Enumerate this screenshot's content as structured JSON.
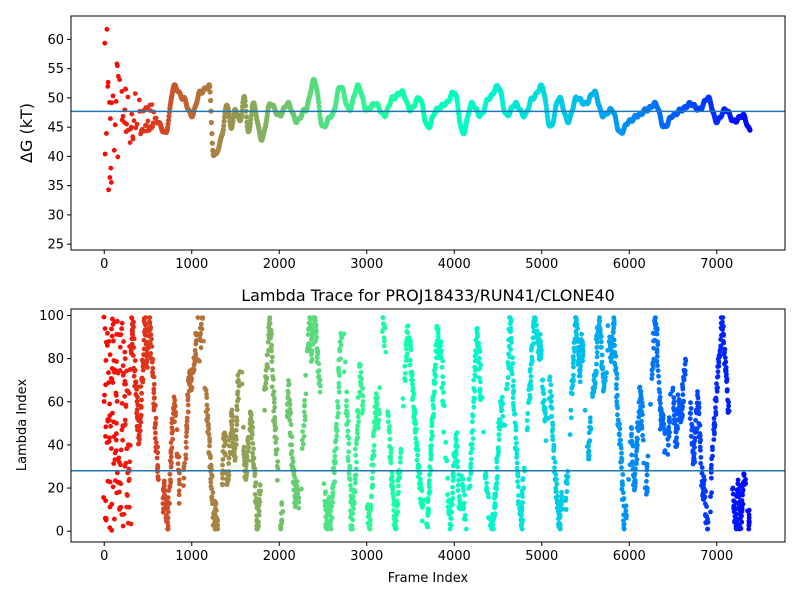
{
  "chart_data": [
    {
      "type": "scatter",
      "title": "",
      "xlabel": "",
      "ylabel": "ΔG (kT)",
      "xlim": [
        -380,
        7780
      ],
      "ylim": [
        24,
        64
      ],
      "xticks": [
        0,
        1000,
        2000,
        3000,
        4000,
        5000,
        6000,
        7000
      ],
      "xtick_labels": [
        "0",
        "1000",
        "2000",
        "3000",
        "4000",
        "5000",
        "6000",
        "7000"
      ],
      "yticks": [
        25,
        30,
        35,
        40,
        45,
        50,
        55,
        60
      ],
      "ytick_labels": [
        "25",
        "30",
        "35",
        "40",
        "45",
        "50",
        "55",
        "60"
      ],
      "grid": false,
      "colormap": "rainbow (reversed with frame index: red at 0, violet at end)",
      "hline": {
        "y": 47.7,
        "color": "#1f77b4"
      },
      "trace_keypoints": {
        "x": [
          600,
          700,
          800,
          900,
          1000,
          1100,
          1200,
          1250,
          1300,
          1350,
          1400,
          1450,
          1500,
          1550,
          1600,
          1650,
          1700,
          1800,
          1900,
          2000,
          2100,
          2200,
          2300,
          2400,
          2500,
          2600,
          2700,
          2800,
          2900,
          3000,
          3100,
          3200,
          3300,
          3400,
          3500,
          3600,
          3700,
          3800,
          3900,
          4000,
          4100,
          4200,
          4300,
          4400,
          4500,
          4600,
          4700,
          4800,
          4900,
          5000,
          5100,
          5200,
          5300,
          5400,
          5500,
          5600,
          5700,
          5800,
          5900,
          6000,
          6100,
          6200,
          6300,
          6400,
          6500,
          6600,
          6700,
          6800,
          6900,
          7000,
          7100,
          7200,
          7300,
          7380
        ],
        "y": [
          46,
          44,
          52,
          50,
          47,
          51,
          52,
          40,
          41,
          44,
          49,
          45,
          48,
          46,
          50,
          44,
          49,
          43,
          49,
          47,
          49,
          46,
          48,
          53,
          45,
          47,
          52,
          48,
          52,
          48,
          49,
          47,
          50,
          51,
          48,
          50,
          45,
          48,
          49,
          51,
          44,
          49,
          47,
          50,
          52,
          47,
          49,
          47,
          50,
          52,
          45,
          50,
          46,
          50,
          49,
          51,
          47,
          48,
          44,
          46,
          47,
          48,
          49,
          45,
          47,
          48,
          49,
          48,
          50,
          46,
          48,
          46,
          47,
          44.5
        ]
      }
    },
    {
      "type": "scatter",
      "title": "Lambda Trace for PROJ18433/RUN41/CLONE40",
      "xlabel": "Frame Index",
      "ylabel": "Lambda Index",
      "xlim": [
        -380,
        7780
      ],
      "ylim": [
        -5,
        103
      ],
      "xticks": [
        0,
        1000,
        2000,
        3000,
        4000,
        5000,
        6000,
        7000
      ],
      "xtick_labels": [
        "0",
        "1000",
        "2000",
        "3000",
        "4000",
        "5000",
        "6000",
        "7000"
      ],
      "yticks": [
        0,
        20,
        40,
        60,
        80,
        100
      ],
      "ytick_labels": [
        "0",
        "20",
        "40",
        "60",
        "80",
        "100"
      ],
      "grid": false,
      "colormap": "rainbow (reversed with frame index: red at 0, violet at end)",
      "hline": {
        "y": 28,
        "color": "#1f77b4"
      },
      "lambda_range": [
        0,
        100
      ],
      "frame_range": [
        0,
        7400
      ]
    }
  ]
}
